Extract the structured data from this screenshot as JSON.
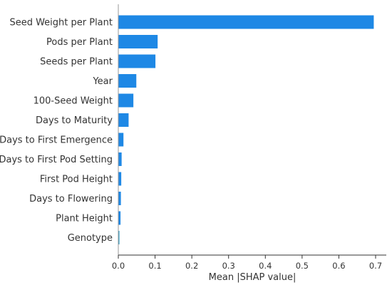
{
  "chart_data": {
    "type": "bar",
    "orientation": "horizontal",
    "categories": [
      "Seed Weight per Plant",
      "Pods per Plant",
      "Seeds per Plant",
      "Year",
      "100-Seed Weight",
      "Days to Maturity",
      "Days to First Emergence",
      "Days to First Pod Setting",
      "First Pod Height",
      "Days to Flowering",
      "Plant Height",
      "Genotype"
    ],
    "values": [
      0.695,
      0.107,
      0.101,
      0.049,
      0.041,
      0.028,
      0.014,
      0.009,
      0.008,
      0.007,
      0.006,
      0.003
    ],
    "xlabel": "Mean |SHAP value|",
    "ylabel": "",
    "xlim": [
      0,
      0.72
    ],
    "xticks": [
      "0.0",
      "0.1",
      "0.2",
      "0.3",
      "0.4",
      "0.5",
      "0.6",
      "0.7"
    ],
    "grid": false,
    "bar_color": "#1E88E5",
    "small_bar_color": "#2E9FC8",
    "axis_color": "#333333"
  }
}
